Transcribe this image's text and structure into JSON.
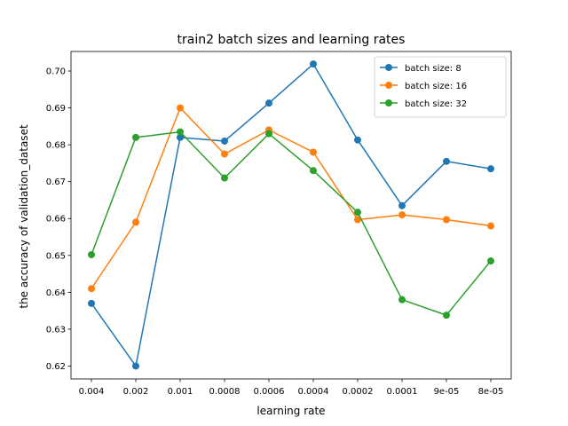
{
  "chart_data": {
    "type": "line",
    "title": "train2 batch sizes and learning rates",
    "xlabel": "learning rate",
    "ylabel": "the accuracy of validation_dataset",
    "categories": [
      "0.004",
      "0.002",
      "0.001",
      "0.0008",
      "0.0006",
      "0.0004",
      "0.0002",
      "0.0001",
      "9e-05",
      "8e-05"
    ],
    "ylim": [
      0.6165,
      0.7053
    ],
    "yticks": [
      0.62,
      0.63,
      0.64,
      0.65,
      0.66,
      0.67,
      0.68,
      0.69,
      0.7
    ],
    "ytick_labels": [
      "0.62",
      "0.63",
      "0.64",
      "0.65",
      "0.66",
      "0.67",
      "0.68",
      "0.69",
      "0.70"
    ],
    "grid": false,
    "legend_position": "top-right",
    "series": [
      {
        "name": "batch size: 8",
        "color": "#1f77b4",
        "values": [
          0.637,
          0.62,
          0.682,
          0.681,
          0.6913,
          0.7019,
          0.6813,
          0.6635,
          0.6755,
          0.6735
        ]
      },
      {
        "name": "batch size: 16",
        "color": "#ff7f0e",
        "values": [
          0.641,
          0.659,
          0.69,
          0.6775,
          0.684,
          0.678,
          0.6597,
          0.661,
          0.6597,
          0.658
        ]
      },
      {
        "name": "batch size: 32",
        "color": "#2ca02c",
        "values": [
          0.6502,
          0.682,
          0.6835,
          0.671,
          0.683,
          0.673,
          0.6617,
          0.638,
          0.6338,
          0.6485
        ]
      }
    ]
  }
}
